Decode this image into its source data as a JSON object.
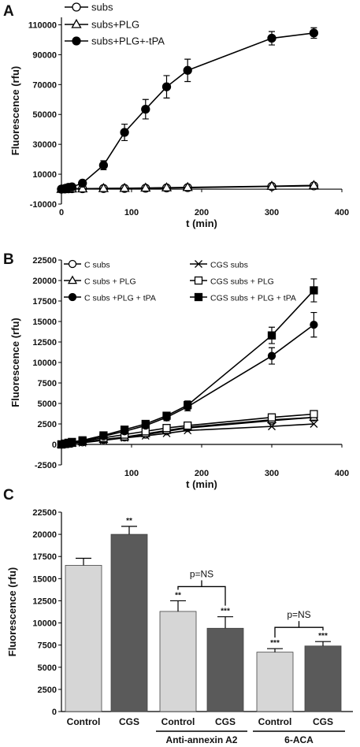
{
  "panels": {
    "a": "A",
    "b": "B",
    "c": "C"
  },
  "chart_data": [
    {
      "type": "line",
      "panel": "A",
      "xlabel": "t (min)",
      "ylabel": "Fluorescence (rfu)",
      "xlim": [
        0,
        400
      ],
      "ylim": [
        -10000,
        115000
      ],
      "xticks": [
        0,
        100,
        200,
        300,
        400
      ],
      "yticks": [
        -10000,
        10000,
        30000,
        50000,
        70000,
        90000,
        110000
      ],
      "legend_position": "top-left",
      "series": [
        {
          "name": "subs",
          "marker": "open-circle",
          "x": [
            0,
            5,
            10,
            15,
            30,
            60,
            90,
            120,
            150,
            180,
            300,
            360
          ],
          "y": [
            0,
            100,
            200,
            300,
            300,
            400,
            500,
            600,
            800,
            1000,
            1800,
            2200
          ],
          "err": [
            0,
            0,
            0,
            0,
            0,
            0,
            0,
            0,
            0,
            0,
            1000,
            1000
          ]
        },
        {
          "name": "subs+PLG",
          "marker": "open-triangle",
          "x": [
            0,
            5,
            10,
            15,
            30,
            60,
            90,
            120,
            150,
            180,
            300,
            360
          ],
          "y": [
            0,
            100,
            200,
            250,
            300,
            500,
            600,
            800,
            1000,
            1200,
            2000,
            2500
          ],
          "err": [
            0,
            0,
            0,
            0,
            0,
            0,
            0,
            0,
            0,
            0,
            0,
            0
          ]
        },
        {
          "name": "subs+PLG+-tPA",
          "marker": "filled-circle",
          "x": [
            0,
            5,
            10,
            15,
            30,
            60,
            90,
            120,
            150,
            180,
            300,
            360
          ],
          "y": [
            0,
            500,
            1200,
            1500,
            4000,
            16000,
            38000,
            53500,
            68500,
            79500,
            101000,
            104500
          ],
          "err": [
            0,
            300,
            500,
            800,
            1500,
            3000,
            5500,
            6500,
            7500,
            7500,
            4500,
            3500
          ]
        }
      ]
    },
    {
      "type": "line",
      "panel": "B",
      "xlabel": "t (min)",
      "ylabel": "Fluorescence (rfu)",
      "xlim": [
        0,
        400
      ],
      "ylim": [
        -2500,
        22500
      ],
      "xticks": [
        100,
        200,
        300,
        400
      ],
      "yticks": [
        -2500,
        0,
        2500,
        5000,
        7500,
        10000,
        12500,
        15000,
        17500,
        20000,
        22500
      ],
      "legend_position": "top",
      "series": [
        {
          "name": "C subs",
          "marker": "open-circle",
          "x": [
            0,
            5,
            10,
            15,
            30,
            60,
            90,
            120,
            150,
            180,
            300,
            360
          ],
          "y": [
            0,
            50,
            100,
            150,
            250,
            550,
            850,
            1200,
            1600,
            2000,
            2900,
            3300
          ],
          "err": [
            0,
            0,
            0,
            0,
            0,
            0,
            0,
            0,
            0,
            0,
            0,
            0
          ]
        },
        {
          "name": "CGS subs",
          "marker": "cross",
          "x": [
            0,
            5,
            10,
            15,
            30,
            60,
            90,
            120,
            150,
            180,
            300,
            360
          ],
          "y": [
            0,
            50,
            100,
            150,
            200,
            500,
            800,
            1050,
            1350,
            1700,
            2200,
            2500
          ],
          "err": [
            0,
            0,
            0,
            0,
            0,
            0,
            0,
            0,
            0,
            0,
            0,
            0
          ]
        },
        {
          "name": "C subs + PLG",
          "marker": "open-triangle",
          "x": [
            0,
            5,
            10,
            15,
            30,
            60,
            90,
            120,
            150,
            180,
            300,
            360
          ],
          "y": [
            0,
            50,
            100,
            150,
            300,
            600,
            900,
            1300,
            1700,
            2100,
            3000,
            3300
          ],
          "err": [
            0,
            0,
            0,
            0,
            0,
            0,
            0,
            0,
            0,
            0,
            0,
            0
          ]
        },
        {
          "name": "CGS subs + PLG",
          "marker": "open-square",
          "x": [
            0,
            5,
            10,
            15,
            30,
            60,
            90,
            120,
            150,
            180,
            300,
            360
          ],
          "y": [
            0,
            50,
            100,
            200,
            400,
            800,
            1200,
            1600,
            2000,
            2300,
            3300,
            3700
          ],
          "err": [
            0,
            0,
            0,
            0,
            0,
            0,
            0,
            0,
            0,
            0,
            300,
            300
          ]
        },
        {
          "name": "C subs +PLG + tPA",
          "marker": "filled-circle",
          "x": [
            0,
            5,
            10,
            15,
            30,
            60,
            90,
            120,
            150,
            180,
            300,
            360
          ],
          "y": [
            0,
            100,
            150,
            250,
            450,
            1000,
            1600,
            2300,
            3300,
            4600,
            10800,
            14600
          ],
          "err": [
            0,
            0,
            0,
            0,
            0,
            200,
            200,
            300,
            400,
            500,
            1000,
            1500
          ]
        },
        {
          "name": "CGS subs + PLG + tPA",
          "marker": "filled-square",
          "x": [
            0,
            5,
            10,
            15,
            30,
            60,
            90,
            120,
            150,
            180,
            300,
            360
          ],
          "y": [
            0,
            100,
            200,
            300,
            500,
            1100,
            1800,
            2500,
            3500,
            4800,
            13300,
            18800
          ],
          "err": [
            0,
            0,
            0,
            0,
            0,
            200,
            200,
            300,
            400,
            500,
            1000,
            1400
          ]
        }
      ]
    },
    {
      "type": "bar",
      "panel": "C",
      "ylabel": "Fluorescence (rfu)",
      "ylim": [
        0,
        22500
      ],
      "yticks": [
        0,
        2500,
        5000,
        7500,
        10000,
        12500,
        15000,
        17500,
        20000,
        22500
      ],
      "categories": [
        "Control",
        "CGS",
        "Control",
        "CGS",
        "Control",
        "CGS"
      ],
      "values": [
        16500,
        20000,
        11300,
        9400,
        6700,
        7400
      ],
      "errors": [
        800,
        900,
        1200,
        1300,
        400,
        500
      ],
      "colors": [
        "#d6d6d6",
        "#5a5a5a",
        "#d6d6d6",
        "#5a5a5a",
        "#d6d6d6",
        "#5a5a5a"
      ],
      "significance": [
        "",
        "**",
        "**",
        "***",
        "***",
        "***"
      ],
      "groups": [
        {
          "label": "Anti-annexin A2",
          "members": [
            2,
            3
          ],
          "comparison": "p=NS"
        },
        {
          "label": "6-ACA",
          "members": [
            4,
            5
          ],
          "comparison": "p=NS"
        }
      ]
    }
  ]
}
